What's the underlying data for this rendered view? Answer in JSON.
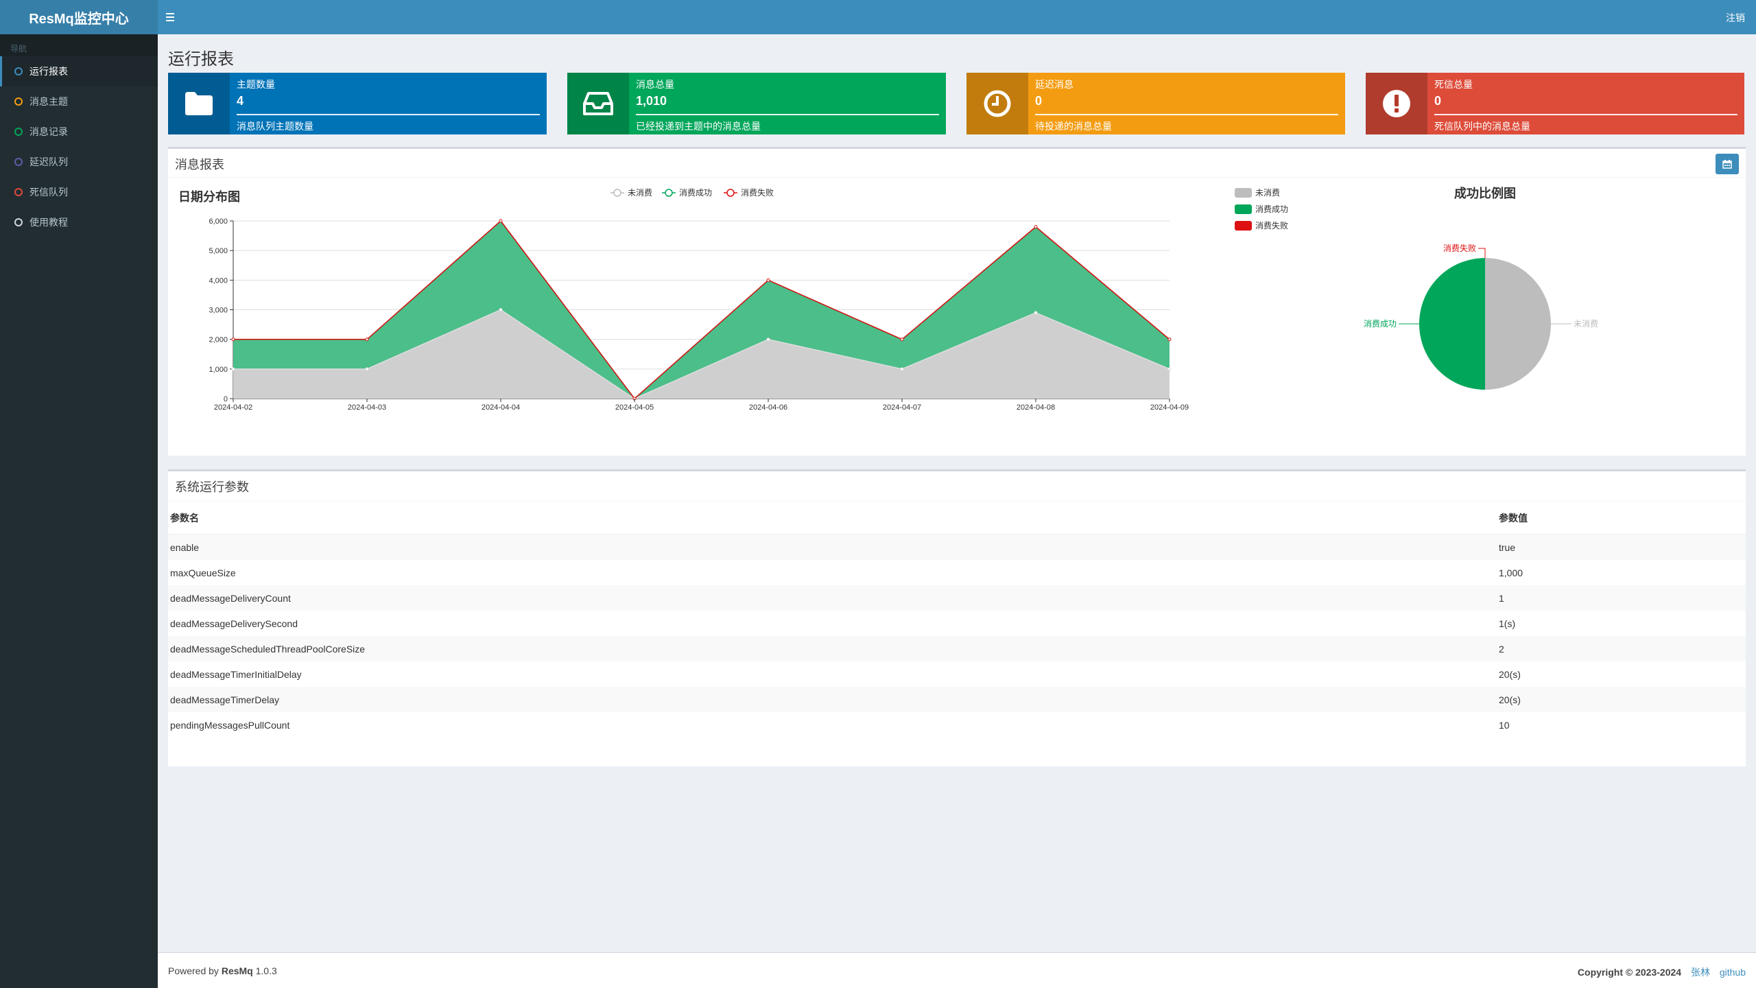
{
  "app": {
    "logo": "ResMq监控中心",
    "logout": "注销"
  },
  "sidebar": {
    "header": "导航",
    "items": [
      {
        "label": "运行报表",
        "color": "#3c8dbc",
        "active": true
      },
      {
        "label": "消息主题",
        "color": "#f39c12"
      },
      {
        "label": "消息记录",
        "color": "#00a65a"
      },
      {
        "label": "延迟队列",
        "color": "#605ca8"
      },
      {
        "label": "死信队列",
        "color": "#dd4b39"
      },
      {
        "label": "使用教程",
        "color": "#d2d6de"
      }
    ]
  },
  "page": {
    "title": "运行报表"
  },
  "info_boxes": [
    {
      "label": "主题数量",
      "value": "4",
      "desc": "消息队列主题数量",
      "color": "#0073b7",
      "icon": "folder-icon"
    },
    {
      "label": "消息总量",
      "value": "1,010",
      "desc": "已经投递到主题中的消息总量",
      "color": "#00a65a",
      "icon": "inbox-icon"
    },
    {
      "label": "延迟消息",
      "value": "0",
      "desc": "待投递的消息总量",
      "color": "#f39c12",
      "icon": "clock-icon"
    },
    {
      "label": "死信总量",
      "value": "0",
      "desc": "死信队列中的消息总量",
      "color": "#dd4b39",
      "icon": "exclamation-icon"
    }
  ],
  "report_box": {
    "title": "消息报表"
  },
  "chart_data": [
    {
      "type": "area",
      "title": "日期分布图",
      "categories": [
        "2024-04-02",
        "2024-04-03",
        "2024-04-04",
        "2024-04-05",
        "2024-04-06",
        "2024-04-07",
        "2024-04-08",
        "2024-04-09"
      ],
      "series": [
        {
          "name": "未消费",
          "values": [
            1000,
            1000,
            3000,
            0,
            2000,
            1000,
            2900,
            1000
          ],
          "color": "#bdbdbd"
        },
        {
          "name": "消费成功",
          "values": [
            1000,
            1000,
            3000,
            0,
            2000,
            1000,
            2900,
            1000
          ],
          "color": "#00a65a"
        },
        {
          "name": "消费失败",
          "values": [
            0,
            0,
            0,
            0,
            0,
            0,
            0,
            0
          ],
          "color": "#dd1111"
        }
      ],
      "stacked": true,
      "ylim": [
        0,
        6000
      ],
      "yticks": [
        "0",
        "1,000",
        "2,000",
        "3,000",
        "4,000",
        "5,000",
        "6,000"
      ],
      "legend": "top-center",
      "grid": true
    },
    {
      "type": "pie",
      "title": "成功比例图",
      "series": [
        {
          "name": "未消费",
          "value": 50,
          "color": "#bdbdbd"
        },
        {
          "name": "消费成功",
          "value": 50,
          "color": "#00a65a"
        },
        {
          "name": "消费失败",
          "value": 0,
          "color": "#dd1111"
        }
      ],
      "legend": "top-left"
    }
  ],
  "params_box": {
    "title": "系统运行参数",
    "columns": [
      "参数名",
      "参数值"
    ],
    "rows": [
      [
        "enable",
        "true"
      ],
      [
        "maxQueueSize",
        "1,000"
      ],
      [
        "deadMessageDeliveryCount",
        "1"
      ],
      [
        "deadMessageDeliverySecond",
        "1(s)"
      ],
      [
        "deadMessageScheduledThreadPoolCoreSize",
        "2"
      ],
      [
        "deadMessageTimerInitialDelay",
        "20(s)"
      ],
      [
        "deadMessageTimerDelay",
        "20(s)"
      ],
      [
        "pendingMessagesPullCount",
        "10"
      ]
    ]
  },
  "footer": {
    "powered_prefix": "Powered by ",
    "product": "ResMq",
    "version": " 1.0.3",
    "copyright": "Copyright © 2023-2024",
    "link_author": "张林",
    "link_github": "github"
  }
}
